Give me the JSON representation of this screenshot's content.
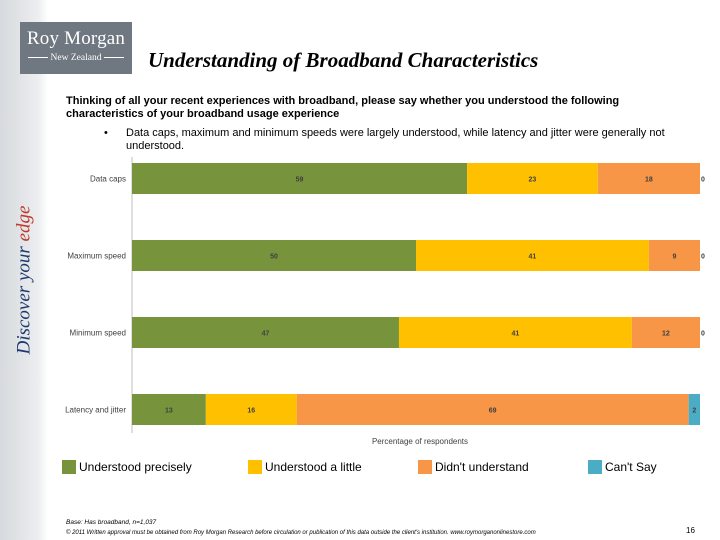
{
  "header": {
    "logo_brand": "Roy Morgan",
    "logo_region": "New Zealand",
    "title": "Understanding of Broadband Characteristics",
    "tagline_main": "Discover your ",
    "tagline_accent": "edge"
  },
  "question": "Thinking of all your recent experiences with broadband, please say whether you understood the following characteristics of your broadband usage experience",
  "bullet": {
    "symbol": "•",
    "text": "Data caps, maximum and minimum speeds were largely understood, while latency and jitter were generally not understood."
  },
  "chart_data": {
    "type": "bar",
    "orientation": "horizontal",
    "stacked": true,
    "categories": [
      "Data caps",
      "Maximum speed",
      "Minimum speed",
      "Latency and jitter"
    ],
    "series": [
      {
        "name": "Understood precisely",
        "color": "#77933c",
        "values": [
          59,
          50,
          47,
          13
        ]
      },
      {
        "name": "Understood a little",
        "color": "#ffc000",
        "values": [
          23,
          41,
          41,
          16
        ]
      },
      {
        "name": "Didn't understand",
        "color": "#f79646",
        "values": [
          18,
          9,
          12,
          69
        ]
      },
      {
        "name": "Can't Say",
        "color": "#4bacc6",
        "values": [
          0,
          0,
          0,
          2
        ]
      }
    ],
    "xlabel": "Percentage of respondents",
    "xlim": [
      0,
      100
    ],
    "grid": false,
    "data_labels": true,
    "legend_position": "bottom"
  },
  "footer": {
    "base": "Base: Has broadband, n=1,037",
    "copyright": "© 2011 Written approval must be obtained from Roy Morgan Research before circulation or publication of this data outside the client's institution. www.roymorganonlinestore.com",
    "page_number": "16"
  }
}
